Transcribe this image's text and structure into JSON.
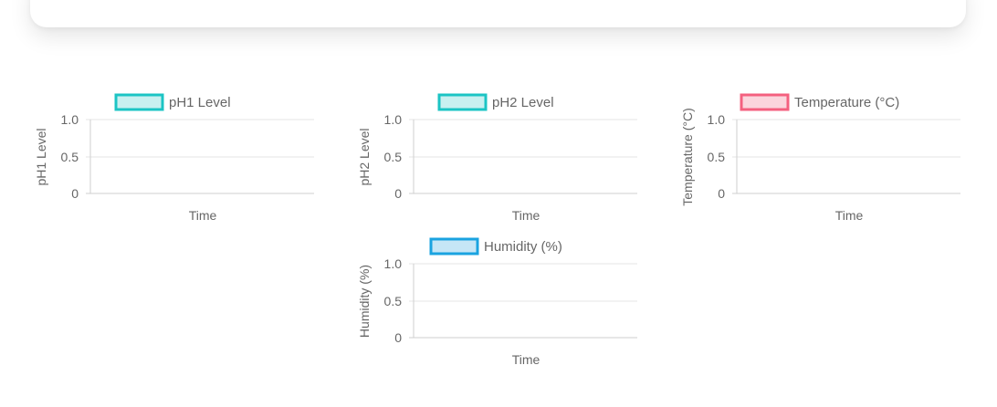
{
  "chart_data": [
    {
      "type": "line",
      "x": [],
      "series": [
        {
          "name": "pH1 Level",
          "values": [],
          "color": "#1cc4c4",
          "fill": "#c9f0f0"
        }
      ],
      "xlabel": "Time",
      "ylabel": "pH1 Level",
      "ylim": [
        0,
        1.0
      ],
      "yticks": [
        "1.0",
        "0.5",
        "0"
      ],
      "grid": true,
      "legend": "top"
    },
    {
      "type": "line",
      "x": [],
      "series": [
        {
          "name": "pH2 Level",
          "values": [],
          "color": "#1cc4c4",
          "fill": "#c9f0f0"
        }
      ],
      "xlabel": "Time",
      "ylabel": "pH2 Level",
      "ylim": [
        0,
        1.0
      ],
      "yticks": [
        "1.0",
        "0.5",
        "0"
      ],
      "grid": true,
      "legend": "top"
    },
    {
      "type": "line",
      "x": [],
      "series": [
        {
          "name": "Temperature (°C)",
          "values": [],
          "color": "#f4607f",
          "fill": "#fbd5dd"
        }
      ],
      "xlabel": "Time",
      "ylabel": "Temperature (°C)",
      "ylim": [
        0,
        1.0
      ],
      "yticks": [
        "1.0",
        "0.5",
        "0"
      ],
      "grid": true,
      "legend": "top"
    },
    {
      "type": "line",
      "x": [],
      "series": [
        {
          "name": "Humidity (%)",
          "values": [],
          "color": "#1aa3e0",
          "fill": "#c6e6f6"
        }
      ],
      "xlabel": "Time",
      "ylabel": "Humidity (%)",
      "ylim": [
        0,
        1.0
      ],
      "yticks": [
        "1.0",
        "0.5",
        "0"
      ],
      "grid": true,
      "legend": "top"
    }
  ]
}
